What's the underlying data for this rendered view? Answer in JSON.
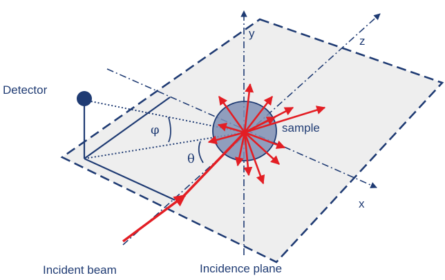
{
  "labels": {
    "detector": "Detector",
    "sample": "sample",
    "phi": "φ",
    "theta": "θ",
    "axis_x": "x",
    "axis_y": "y",
    "axis_z": "z",
    "incident_beam": "Incident beam",
    "incidence_plane": "Incidence plane"
  },
  "colors": {
    "outline": "#1f3b73",
    "plane_fill": "#eeeeee",
    "sample_fill": "#7f8fb4",
    "arrows": "#e31e24",
    "detector": "#1f3b73"
  }
}
